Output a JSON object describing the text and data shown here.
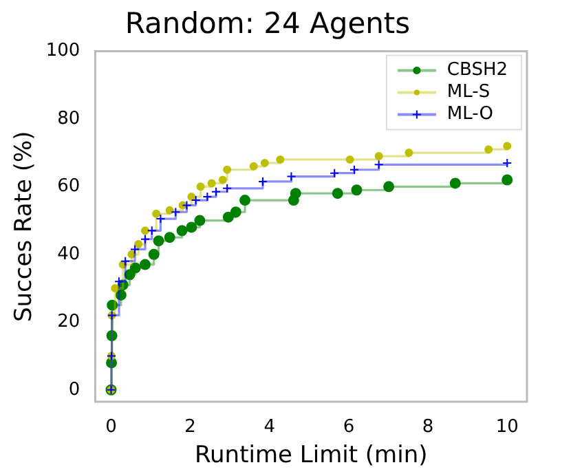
{
  "chart_data": {
    "type": "step",
    "title": "Random: 24 Agents",
    "xlabel": "Runtime Limit (min)",
    "ylabel": "Succes Rate (%)",
    "xlim": [
      -0.4,
      10.5
    ],
    "ylim": [
      -3.5,
      100
    ],
    "xticks": [
      0,
      2,
      4,
      6,
      8,
      10
    ],
    "yticks": [
      0,
      20,
      40,
      60,
      80,
      100
    ],
    "grid": false,
    "legend": "top right",
    "series": [
      {
        "name": "CBSH2",
        "color": "#008000",
        "marker": "circle",
        "x": [
          0,
          0.01,
          0.02,
          0.03,
          0.25,
          0.3,
          0.47,
          0.61,
          0.86,
          1.08,
          1.2,
          1.48,
          1.79,
          2.03,
          2.24,
          2.96,
          3.15,
          3.38,
          4.61,
          4.66,
          5.72,
          6.2,
          7.01,
          8.69,
          10
        ],
        "values": [
          0,
          8,
          16,
          25,
          28,
          31,
          34,
          36,
          37,
          40,
          44,
          45,
          47,
          48,
          50,
          51,
          52.5,
          56,
          56,
          58,
          58,
          59,
          60,
          61,
          62
        ]
      },
      {
        "name": "ML-S",
        "color": "#bfbf00",
        "marker": "circle",
        "x": [
          0,
          0.01,
          0.02,
          0.1,
          0.3,
          0.52,
          0.69,
          0.86,
          1.14,
          1.48,
          1.81,
          2.03,
          2.26,
          2.54,
          2.82,
          2.93,
          3.6,
          3.88,
          4.27,
          6.03,
          6.76,
          7.52,
          9.53,
          10
        ],
        "values": [
          0,
          10,
          22,
          30,
          37,
          40,
          43,
          47,
          52,
          53,
          54.5,
          57,
          60,
          61,
          62,
          65,
          66,
          67,
          68,
          68,
          69,
          70,
          71,
          72
        ]
      },
      {
        "name": "ML-O",
        "color": "#0000ff",
        "marker": "cross",
        "x": [
          0,
          0.01,
          0.02,
          0.2,
          0.36,
          0.6,
          0.86,
          1.03,
          1.25,
          1.63,
          1.91,
          2.14,
          2.43,
          2.65,
          2.93,
          3.83,
          4.55,
          5.64,
          6.14,
          6.76,
          10
        ],
        "values": [
          0,
          10,
          22,
          32,
          38,
          41.5,
          44.5,
          47,
          50.5,
          52.5,
          54.5,
          56,
          57,
          58.5,
          59.5,
          61.5,
          63,
          64,
          65,
          66.5,
          67
        ]
      }
    ]
  }
}
